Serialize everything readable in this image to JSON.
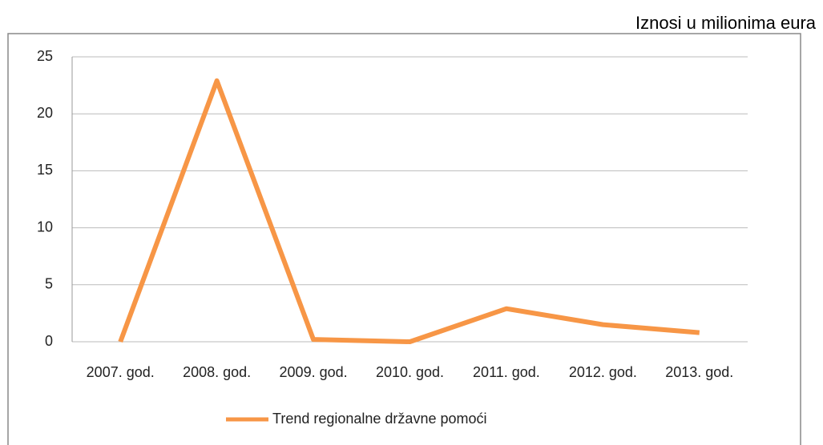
{
  "chart_data": {
    "type": "line",
    "annotation": "Iznosi u milionima eura",
    "categories": [
      "2007. god.",
      "2008. god.",
      "2009. god.",
      "2010. god.",
      "2011. god.",
      "2012. god.",
      "2013. god."
    ],
    "series": [
      {
        "name": "Trend regionalne državne pomoći",
        "color": "#f79646",
        "values": [
          0,
          22.9,
          0.2,
          0,
          2.9,
          1.5,
          0.8
        ]
      }
    ],
    "ylim": [
      0,
      25
    ],
    "yticks": [
      0,
      5,
      10,
      15,
      20,
      25
    ],
    "grid": true,
    "legend": "bottom"
  }
}
